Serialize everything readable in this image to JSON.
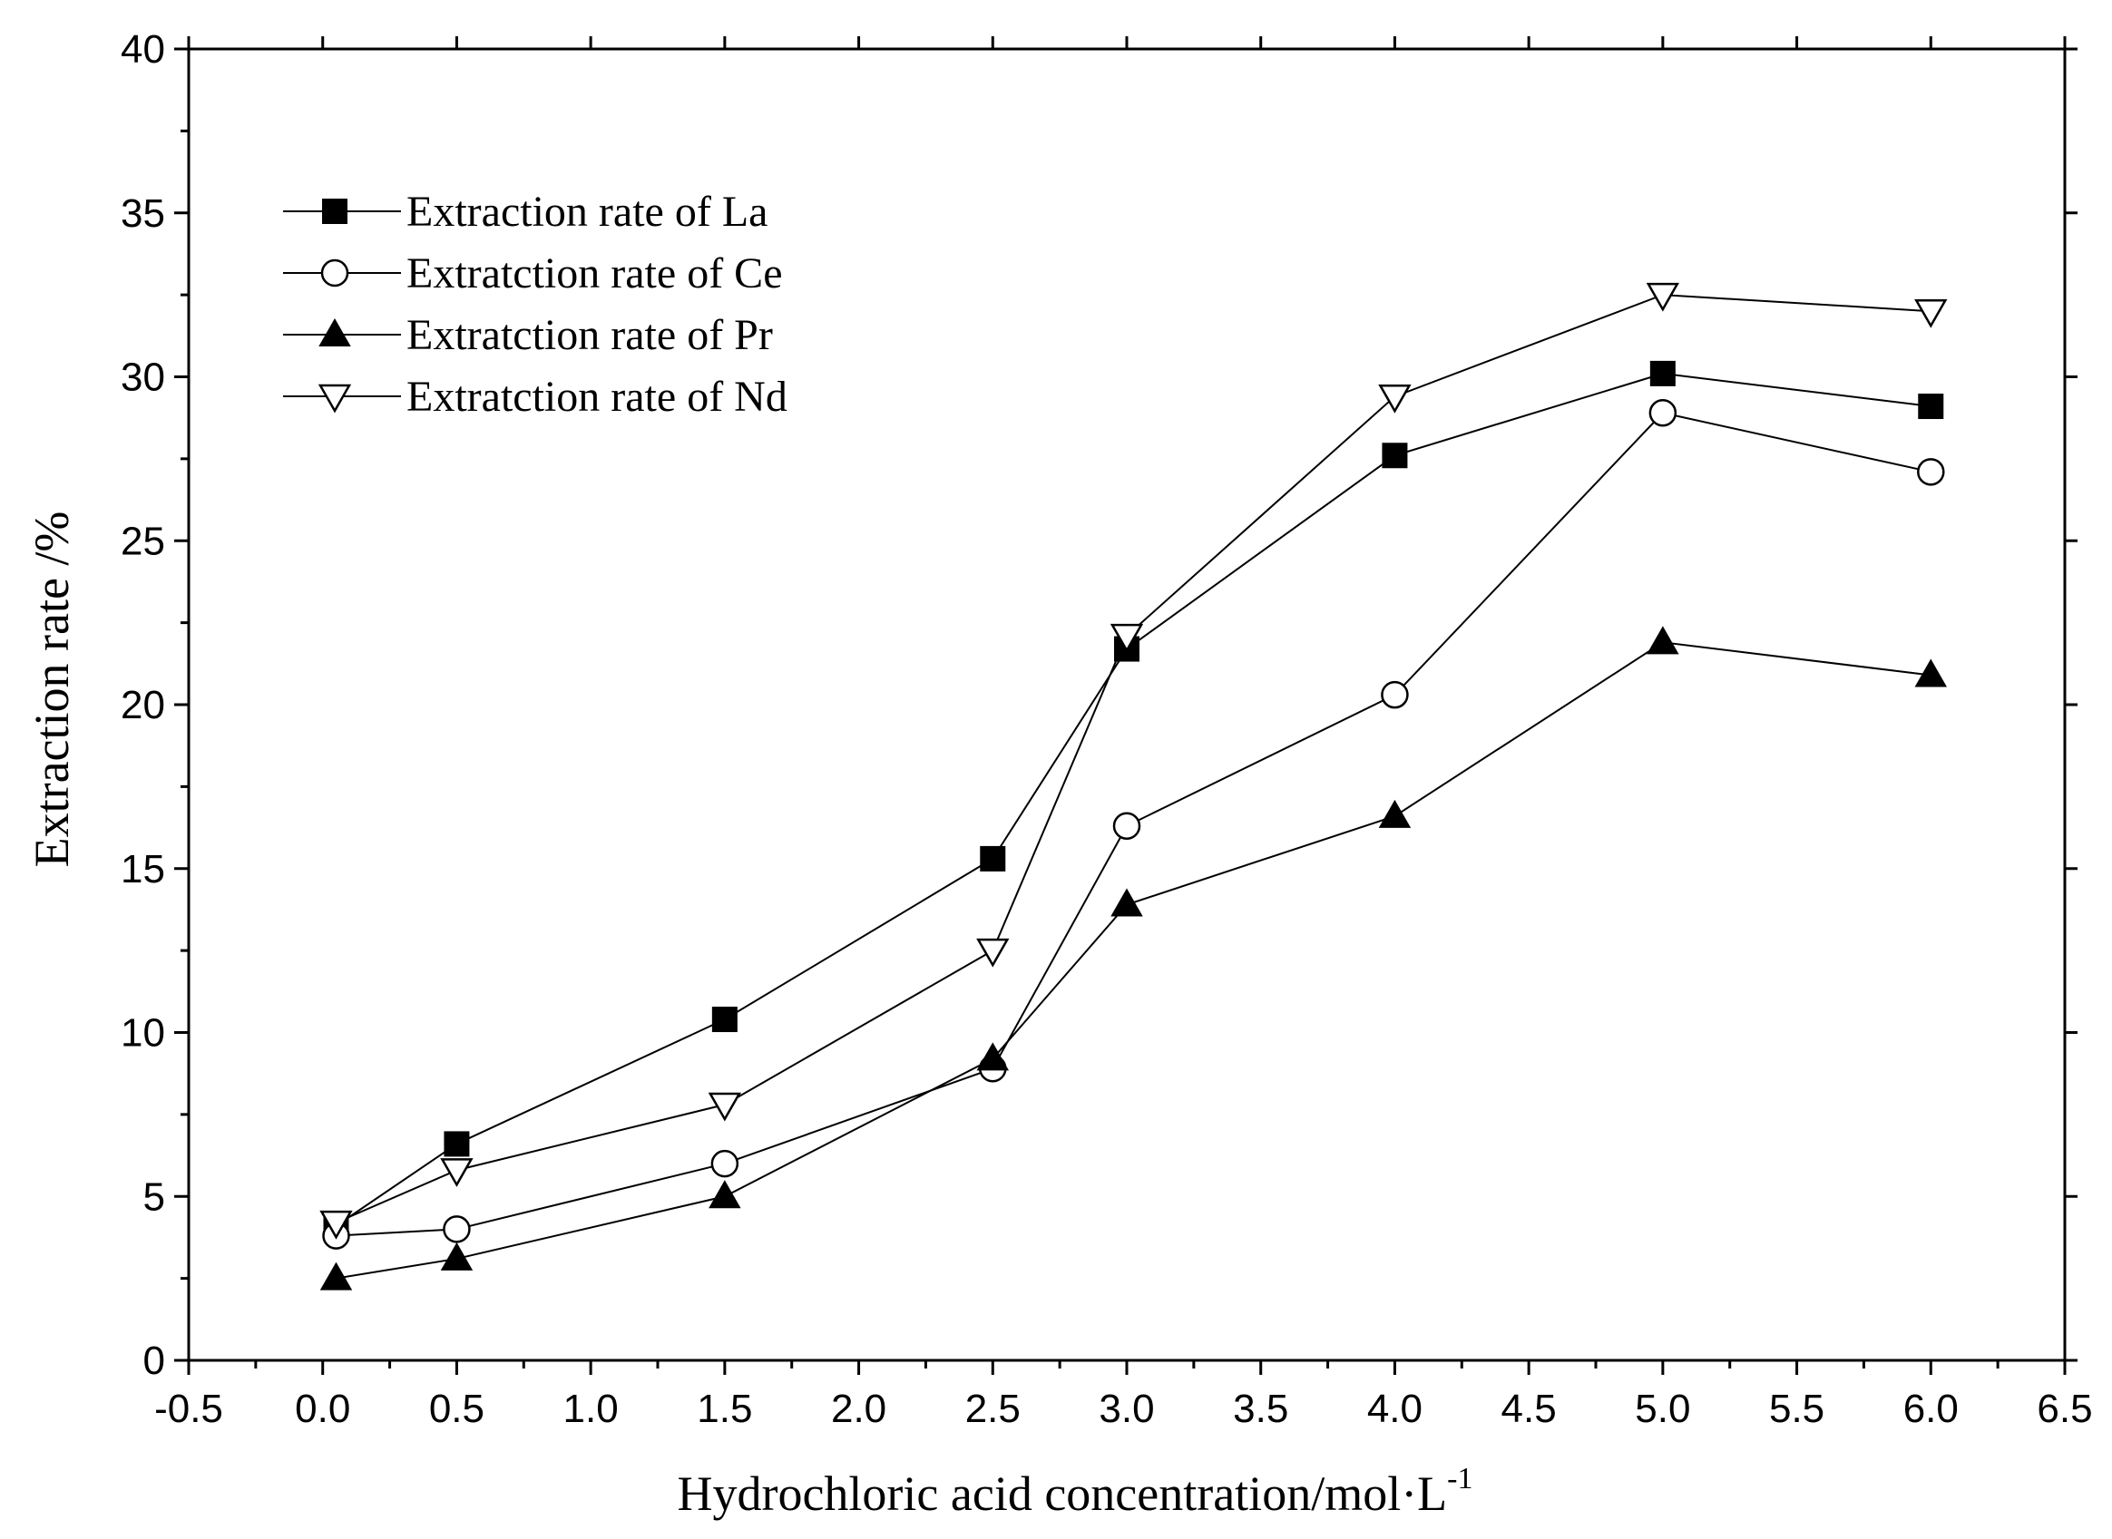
{
  "chart_data": {
    "type": "line",
    "title": "",
    "xlabel": "Hydrochloric acid concentration/mol·L",
    "xlabel_superscript": "-1",
    "ylabel": "Extraction rate /%",
    "xlim": [
      -0.5,
      6.5
    ],
    "ylim": [
      0,
      40
    ],
    "x_ticks": [
      -0.5,
      0.0,
      0.5,
      1.0,
      1.5,
      2.0,
      2.5,
      3.0,
      3.5,
      4.0,
      4.5,
      5.0,
      5.5,
      6.0,
      6.5
    ],
    "x_tick_labels": [
      "-0.5",
      "0.0",
      "0.5",
      "1.0",
      "1.5",
      "2.0",
      "2.5",
      "3.0",
      "3.5",
      "4.0",
      "4.5",
      "5.0",
      "5.5",
      "6.0",
      "6.5"
    ],
    "y_ticks": [
      0,
      5,
      10,
      15,
      20,
      25,
      30,
      35,
      40
    ],
    "y_tick_labels": [
      "0",
      "5",
      "10",
      "15",
      "20",
      "25",
      "30",
      "35",
      "40"
    ],
    "grid": false,
    "legend_position": "top-left",
    "x": [
      0.05,
      0.5,
      1.5,
      2.5,
      3.0,
      4.0,
      5.0,
      6.0
    ],
    "series": [
      {
        "name": "Extraction rate of La",
        "marker": "filled-square",
        "values": [
          4.1,
          6.6,
          10.4,
          15.3,
          21.7,
          27.6,
          30.1,
          29.1
        ]
      },
      {
        "name": "Extratction rate of Ce",
        "marker": "open-circle",
        "values": [
          3.8,
          4.0,
          6.0,
          8.9,
          16.3,
          20.3,
          28.9,
          27.1
        ]
      },
      {
        "name": "Extratction rate of Pr",
        "marker": "filled-triangle-up",
        "values": [
          2.5,
          3.1,
          5.0,
          9.2,
          13.9,
          16.6,
          21.9,
          20.9
        ]
      },
      {
        "name": "Extratction rate of Nd",
        "marker": "open-triangle-down",
        "values": [
          4.2,
          5.8,
          7.8,
          12.5,
          22.1,
          29.4,
          32.5,
          32.0
        ]
      }
    ]
  }
}
